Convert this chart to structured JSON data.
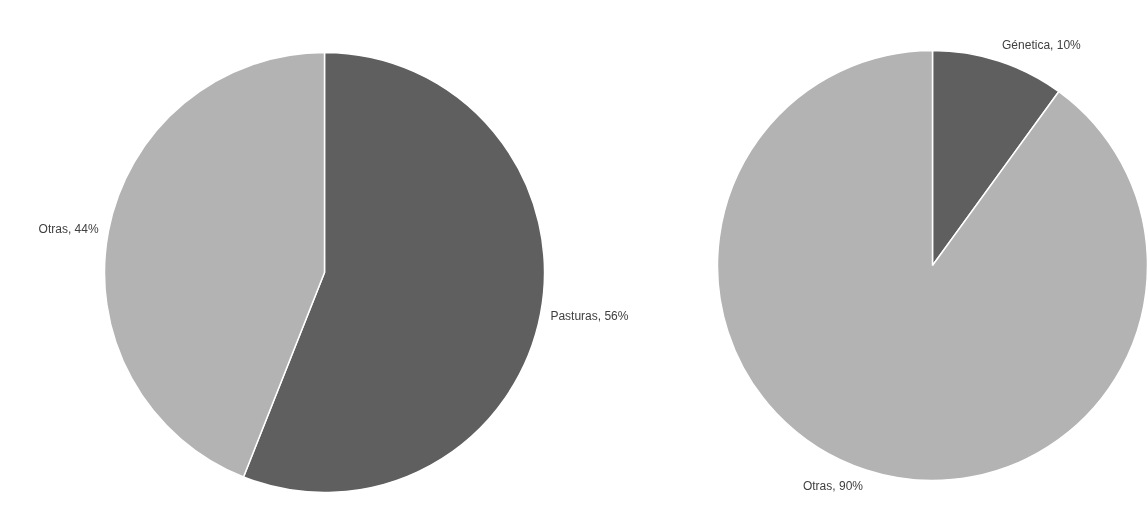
{
  "chart_data": [
    {
      "type": "pie",
      "categories": [
        "Pasturas",
        "Otras"
      ],
      "values": [
        56,
        44
      ],
      "colors": [
        "#5f5f5f",
        "#b3b3b3"
      ],
      "value_labels": [
        "56%",
        "44%"
      ],
      "legend": false
    },
    {
      "type": "pie",
      "categories": [
        "Génetica",
        "Otras"
      ],
      "values": [
        10,
        90
      ],
      "colors": [
        "#5f5f5f",
        "#b3b3b3"
      ],
      "value_labels": [
        "10%",
        "90%"
      ],
      "legend": false
    }
  ]
}
